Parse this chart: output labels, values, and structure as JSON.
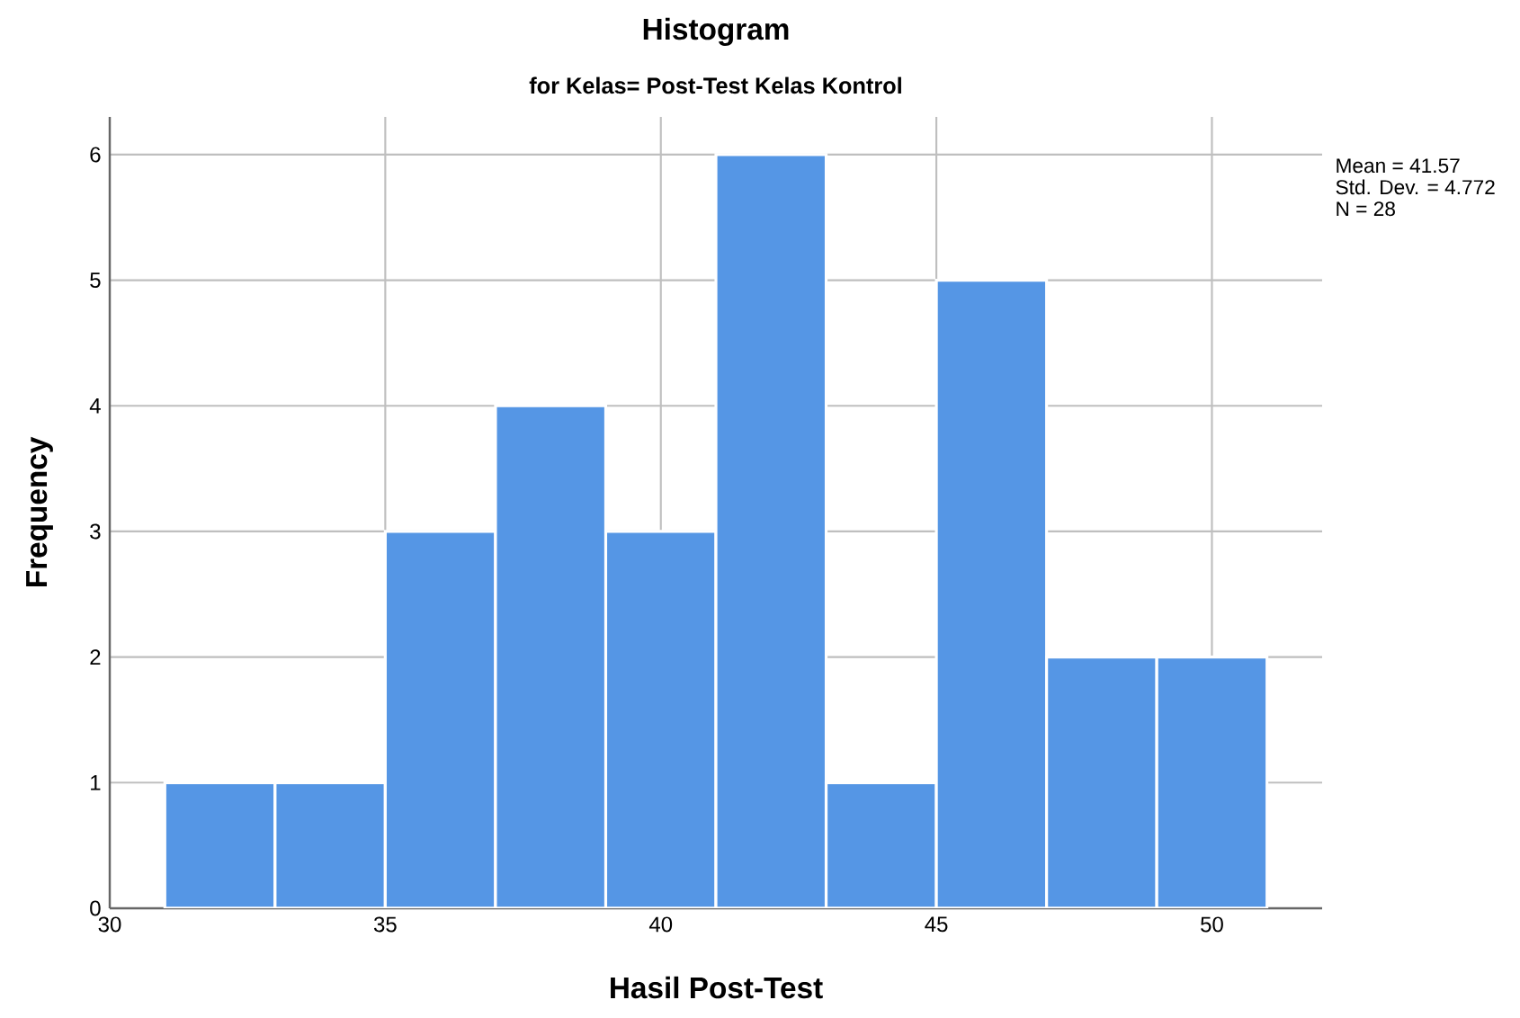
{
  "chart_data": {
    "type": "histogram",
    "title": "Histogram",
    "subtitle": "for Kelas= Post-Test Kelas Kontrol",
    "xlabel": "Hasil Post-Test",
    "ylabel": "Frequency",
    "bins": [
      31,
      33,
      35,
      37,
      39,
      41,
      43,
      45,
      47,
      49,
      51
    ],
    "values": [
      1,
      1,
      3,
      4,
      3,
      6,
      1,
      5,
      2,
      2
    ],
    "color": "#5596e5",
    "xlim": [
      30,
      52
    ],
    "ylim": [
      0,
      6.3
    ],
    "xticks": [
      30,
      35,
      40,
      45,
      50
    ],
    "yticks": [
      0,
      1,
      2,
      3,
      4,
      5,
      6
    ],
    "grid": true,
    "annotations": [
      "Mean = 41.57",
      "Std. Dev. = 4.772",
      "N = 28"
    ]
  }
}
